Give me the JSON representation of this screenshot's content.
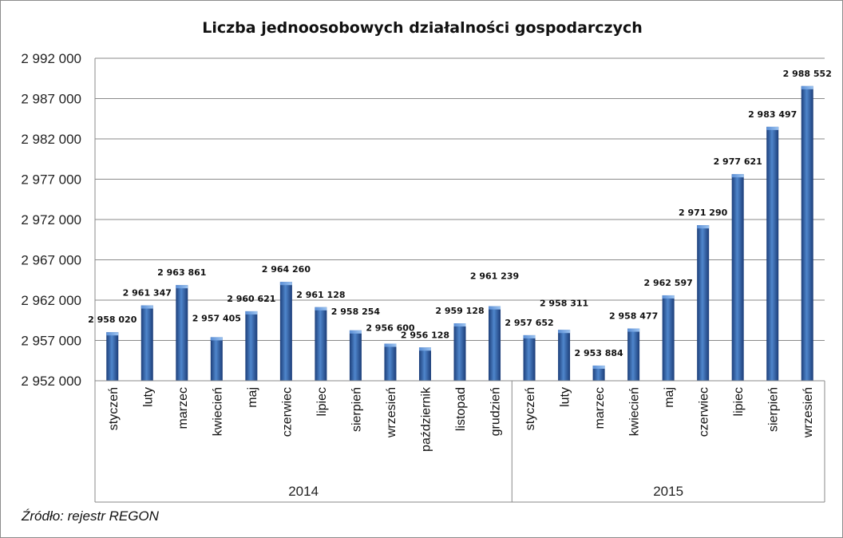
{
  "chart_data": {
    "type": "bar",
    "title": "Liczba jednoosobowych działalności gospodarczych",
    "xlabel": "",
    "ylabel": "",
    "ylim": [
      2952000,
      2992000
    ],
    "yticks": [
      2952000,
      2957000,
      2962000,
      2967000,
      2972000,
      2977000,
      2982000,
      2987000,
      2992000
    ],
    "ytick_labels": [
      "2 952 000",
      "2 957 000",
      "2 962 000",
      "2 967 000",
      "2 972 000",
      "2 977 000",
      "2 982 000",
      "2 987 000",
      "2 992 000"
    ],
    "grid": true,
    "legend": "none",
    "groups": [
      {
        "label": "2014",
        "count": 12
      },
      {
        "label": "2015",
        "count": 9
      }
    ],
    "categories": [
      "styczeń",
      "luty",
      "marzec",
      "kwiecień",
      "maj",
      "czerwiec",
      "lipiec",
      "sierpień",
      "wrzesień",
      "październik",
      "listopad",
      "grudzień",
      "styczeń",
      "luty",
      "marzec",
      "kwiecień",
      "maj",
      "czerwiec",
      "lipiec",
      "sierpień",
      "wrzesień"
    ],
    "values": [
      2958020,
      2961347,
      2963861,
      2957405,
      2960621,
      2964260,
      2961128,
      2958254,
      2956600,
      2956128,
      2959128,
      2961239,
      2957652,
      2958311,
      2953884,
      2958477,
      2962597,
      2971290,
      2977621,
      2983497,
      2988552
    ],
    "data_labels": [
      "2 958 020",
      "2 961 347",
      "2 963 861",
      "2 957 405",
      "2 960 621",
      "2 964 260",
      "2 961 128",
      "2 958 254",
      "2 956 600",
      "2 956 128",
      "2 959 128",
      "2 961 239",
      "2 957 652",
      "2 958 311",
      "2 953 884",
      "2 958 477",
      "2 962 597",
      "2 971 290",
      "2 977 621",
      "2 983 497",
      "2 988 552"
    ],
    "source": "Źródło: rejestr REGON"
  }
}
